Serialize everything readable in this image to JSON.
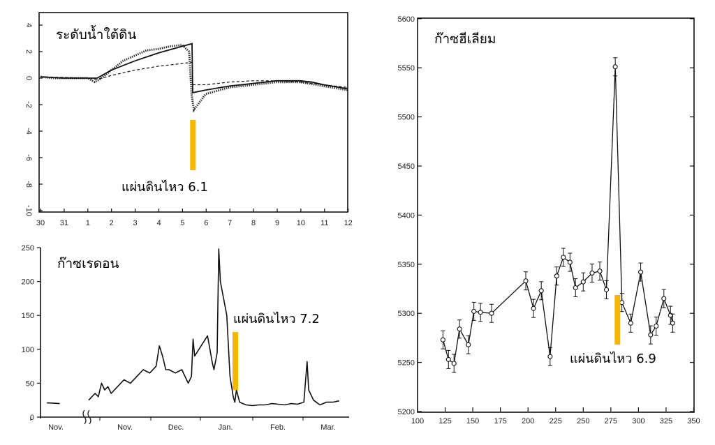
{
  "marker_color": "#f5b800",
  "chart_data": [
    {
      "type": "line",
      "title": "ระดับน้ำใต้ดิน",
      "ylim": [
        -10,
        4
      ],
      "yticks": [
        "4",
        "2",
        "0",
        "-2",
        "-4",
        "-6",
        "-8",
        "-10"
      ],
      "xticks": [
        "30",
        "31",
        "1",
        "2",
        "3",
        "4",
        "5",
        "6",
        "7",
        "8",
        "9",
        "10",
        "11",
        "12"
      ],
      "series": [
        {
          "role": "observed",
          "x": [
            0,
            0.5,
            1,
            1.5,
            2,
            2.3,
            2.5,
            3,
            3.5,
            4,
            4.5,
            5,
            5.5,
            6,
            6.3,
            6.4,
            6.5,
            7,
            8,
            9,
            10,
            11,
            12,
            13
          ],
          "y": [
            0.1,
            0.0,
            0.0,
            0.0,
            0.0,
            -0.3,
            -0.1,
            0.6,
            1.3,
            1.7,
            2.1,
            2.2,
            2.4,
            2.5,
            2.0,
            -1.2,
            -2.4,
            -1.2,
            -0.7,
            -0.5,
            -0.3,
            -0.3,
            -0.6,
            -0.9
          ]
        },
        {
          "role": "model-solid",
          "x": [
            0,
            1,
            2,
            2.4,
            3,
            4,
            5,
            6,
            6.42,
            6.45,
            7,
            8,
            9,
            10,
            11,
            11.5,
            12,
            13
          ],
          "y": [
            0.1,
            0.0,
            0.0,
            0.0,
            0.6,
            1.3,
            1.9,
            2.4,
            2.6,
            -1.1,
            -0.9,
            -0.6,
            -0.4,
            -0.2,
            -0.2,
            -0.3,
            -0.5,
            -0.8
          ]
        },
        {
          "role": "model-dashed",
          "x": [
            0,
            2,
            2.4,
            3,
            4,
            5,
            6,
            6.42,
            6.45,
            7,
            8,
            9,
            10,
            11,
            12,
            13
          ],
          "y": [
            0.1,
            0.0,
            -0.1,
            0.2,
            0.6,
            0.9,
            1.1,
            1.2,
            -0.5,
            -0.5,
            -0.3,
            -0.2,
            -0.2,
            -0.3,
            -0.5,
            -0.7
          ]
        }
      ],
      "marker": {
        "x": 6.4,
        "label": "แผ่นดินไหว 6.1"
      }
    },
    {
      "type": "line",
      "title": "ก๊าซเรดอน",
      "ylim": [
        0,
        250
      ],
      "yticks": [
        "250",
        "200",
        "150",
        "100",
        "50",
        "0"
      ],
      "xticks": [
        "Nov.",
        "Nov.",
        "Dec.",
        "Jan.",
        "Feb.",
        "Mar."
      ],
      "series": [
        {
          "x": [
            0.2,
            0.6
          ],
          "y": [
            21,
            20
          ]
        },
        {
          "x": [
            1.5,
            1.7,
            1.8,
            1.9,
            2.0,
            2.1,
            2.2,
            2.4,
            2.6,
            2.8,
            3.0,
            3.2,
            3.4,
            3.6,
            3.7,
            3.8,
            3.85,
            3.9,
            4.0,
            4.2,
            4.4,
            4.6,
            4.7,
            4.75,
            4.8,
            5.0,
            5.2,
            5.35,
            5.4,
            5.5,
            5.55,
            5.6,
            5.8,
            5.9,
            6.0,
            6.05,
            6.1,
            6.2,
            6.3,
            6.4,
            6.6,
            6.8,
            7.0,
            7.2,
            7.4,
            7.6,
            7.8,
            8.0,
            8.2,
            8.3,
            8.35,
            8.5,
            8.7,
            8.9,
            9.1,
            9.3
          ],
          "y": [
            25,
            35,
            30,
            50,
            40,
            45,
            35,
            45,
            55,
            50,
            60,
            70,
            65,
            75,
            105,
            90,
            80,
            70,
            70,
            65,
            70,
            50,
            60,
            115,
            90,
            105,
            120,
            80,
            70,
            95,
            248,
            200,
            150,
            60,
            30,
            22,
            40,
            22,
            20,
            18,
            17,
            18,
            18,
            20,
            19,
            18,
            20,
            19,
            22,
            82,
            40,
            25,
            18,
            22,
            22,
            24
          ]
        }
      ],
      "marker": {
        "label": "แผ่นดินไหว 7.2"
      }
    },
    {
      "type": "line",
      "title": "ก๊าซฮีเลียม",
      "ylim": [
        5200,
        5600
      ],
      "xlim": [
        100,
        350
      ],
      "yticks": [
        "5600",
        "5550",
        "5500",
        "5450",
        "5400",
        "5350",
        "5300",
        "5250",
        "5200"
      ],
      "xticks": [
        "100",
        "125",
        "150",
        "175",
        "200",
        "225",
        "250",
        "275",
        "300",
        "325",
        "350"
      ],
      "series": [
        {
          "x": [
            123,
            128,
            133,
            138,
            146,
            151,
            157,
            167,
            198,
            205,
            212,
            220,
            226,
            232,
            238,
            243,
            250,
            258,
            265,
            271,
            279,
            285,
            293,
            302,
            311,
            316,
            323,
            329,
            331
          ],
          "y": [
            5273,
            5253,
            5249,
            5284,
            5268,
            5302,
            5301,
            5300,
            5333,
            5305,
            5323,
            5256,
            5338,
            5357,
            5352,
            5326,
            5332,
            5341,
            5343,
            5324,
            5551,
            5311,
            5290,
            5342,
            5278,
            5287,
            5315,
            5298,
            5290
          ]
        }
      ],
      "marker": {
        "x": 281,
        "label": "แผ่นดินไหว 6.9"
      }
    }
  ]
}
